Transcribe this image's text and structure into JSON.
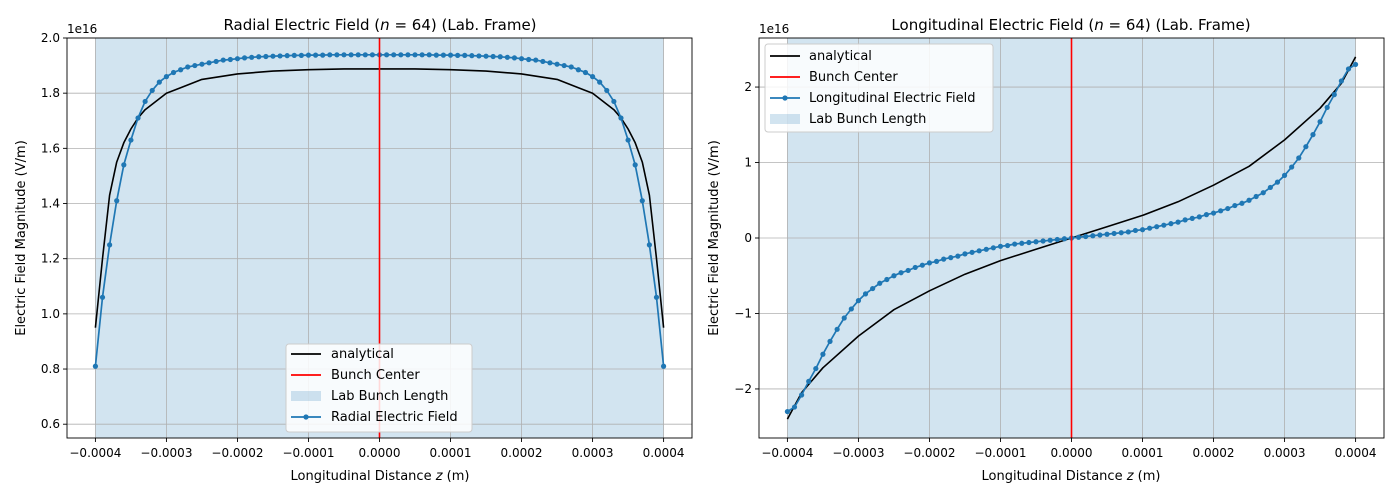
{
  "chart_data": [
    {
      "type": "line",
      "title": "Radial Electric Field (",
      "title_var": "n",
      "title_rest": " = 64) (Lab. Frame)",
      "xlabel": "Longitudinal Distance ",
      "xlabel_var": "z",
      "xlabel_unit": " (m)",
      "ylabel": "Electric Field Magnitude (V/m)",
      "offset_text": "1e16",
      "xlim": [
        -0.00044,
        0.00044
      ],
      "ylim": [
        0.55,
        2.0
      ],
      "xticks": [
        -0.0004,
        -0.0003,
        -0.0002,
        -0.0001,
        0.0,
        0.0001,
        0.0002,
        0.0003,
        0.0004
      ],
      "xtick_labels": [
        "−0.0004",
        "−0.0003",
        "−0.0002",
        "−0.0001",
        "0.0000",
        "0.0001",
        "0.0002",
        "0.0003",
        "0.0004"
      ],
      "yticks": [
        0.6,
        0.8,
        1.0,
        1.2,
        1.4,
        1.6,
        1.8,
        2.0
      ],
      "ytick_labels": [
        "0.6",
        "0.8",
        "1.0",
        "1.2",
        "1.4",
        "1.6",
        "1.8",
        "2.0"
      ],
      "grid": true,
      "bunch_span": [
        -0.0004,
        0.0004
      ],
      "bunch_center": 0.0,
      "legend_position": "lower-center",
      "legend": [
        "analytical",
        "Bunch Center",
        "Lab Bunch Length",
        "Radial Electric Field"
      ],
      "series": [
        {
          "name": "analytical",
          "x": [
            -0.0004,
            -0.00039,
            -0.00038,
            -0.00037,
            -0.00036,
            -0.00035,
            -0.00034,
            -0.00033,
            -0.00032,
            -0.00031,
            -0.0003,
            -0.00028,
            -0.00025,
            -0.0002,
            -0.00015,
            -0.0001,
            -5e-05,
            0.0,
            5e-05,
            0.0001,
            0.00015,
            0.0002,
            0.00025,
            0.00028,
            0.0003,
            0.00031,
            0.00032,
            0.00033,
            0.00034,
            0.00035,
            0.00036,
            0.00037,
            0.00038,
            0.00039,
            0.0004
          ],
          "values": [
            0.95,
            1.2,
            1.43,
            1.55,
            1.62,
            1.67,
            1.71,
            1.74,
            1.76,
            1.78,
            1.8,
            1.82,
            1.85,
            1.87,
            1.88,
            1.885,
            1.888,
            1.888,
            1.888,
            1.885,
            1.88,
            1.87,
            1.85,
            1.82,
            1.8,
            1.78,
            1.76,
            1.74,
            1.71,
            1.67,
            1.62,
            1.55,
            1.43,
            1.2,
            0.95
          ]
        },
        {
          "name": "Radial Electric Field",
          "x": [
            -0.0004,
            -0.00039,
            -0.00038,
            -0.00037,
            -0.00036,
            -0.00035,
            -0.00034,
            -0.00033,
            -0.00032,
            -0.00031,
            -0.0003,
            -0.00029,
            -0.00028,
            -0.00027,
            -0.00026,
            -0.00025,
            -0.00024,
            -0.00023,
            -0.00022,
            -0.00021,
            -0.0002,
            -0.00019,
            -0.00018,
            -0.00017,
            -0.00016,
            -0.00015,
            -0.00014,
            -0.00013,
            -0.00012,
            -0.00011,
            -0.0001,
            -9e-05,
            -8e-05,
            -7e-05,
            -6e-05,
            -5e-05,
            -4e-05,
            -3e-05,
            -2e-05,
            -1e-05,
            0.0,
            1e-05,
            2e-05,
            3e-05,
            4e-05,
            5e-05,
            6e-05,
            7e-05,
            8e-05,
            9e-05,
            0.0001,
            0.00011,
            0.00012,
            0.00013,
            0.00014,
            0.00015,
            0.00016,
            0.00017,
            0.00018,
            0.00019,
            0.0002,
            0.00021,
            0.00022,
            0.00023,
            0.00024,
            0.00025,
            0.00026,
            0.00027,
            0.00028,
            0.00029,
            0.0003,
            0.00031,
            0.00032,
            0.00033,
            0.00034,
            0.00035,
            0.00036,
            0.00037,
            0.00038,
            0.00039,
            0.0004
          ],
          "values": [
            0.81,
            1.06,
            1.25,
            1.41,
            1.54,
            1.63,
            1.71,
            1.77,
            1.81,
            1.84,
            1.86,
            1.875,
            1.885,
            1.895,
            1.9,
            1.905,
            1.91,
            1.915,
            1.92,
            1.922,
            1.925,
            1.928,
            1.93,
            1.932,
            1.933,
            1.934,
            1.935,
            1.936,
            1.937,
            1.937,
            1.938,
            1.938,
            1.938,
            1.939,
            1.939,
            1.939,
            1.939,
            1.939,
            1.939,
            1.939,
            1.939,
            1.939,
            1.939,
            1.939,
            1.939,
            1.939,
            1.939,
            1.939,
            1.938,
            1.938,
            1.938,
            1.937,
            1.937,
            1.936,
            1.935,
            1.934,
            1.933,
            1.932,
            1.93,
            1.928,
            1.925,
            1.922,
            1.92,
            1.915,
            1.91,
            1.905,
            1.9,
            1.895,
            1.885,
            1.875,
            1.86,
            1.84,
            1.81,
            1.77,
            1.71,
            1.63,
            1.54,
            1.41,
            1.25,
            1.06,
            0.81
          ]
        }
      ]
    },
    {
      "type": "line",
      "title": "Longitudinal Electric Field (",
      "title_var": "n",
      "title_rest": " = 64) (Lab. Frame)",
      "xlabel": "Longitudinal Distance ",
      "xlabel_var": "z",
      "xlabel_unit": " (m)",
      "ylabel": "Electric Field Magnitude (V/m)",
      "offset_text": "1e16",
      "xlim": [
        -0.00044,
        0.00044
      ],
      "ylim": [
        -2.65,
        2.65
      ],
      "xticks": [
        -0.0004,
        -0.0003,
        -0.0002,
        -0.0001,
        0.0,
        0.0001,
        0.0002,
        0.0003,
        0.0004
      ],
      "xtick_labels": [
        "−0.0004",
        "−0.0003",
        "−0.0002",
        "−0.0001",
        "0.0000",
        "0.0001",
        "0.0002",
        "0.0003",
        "0.0004"
      ],
      "yticks": [
        -2,
        -1,
        0,
        1,
        2
      ],
      "ytick_labels": [
        "−2",
        "−1",
        "0",
        "1",
        "2"
      ],
      "grid": true,
      "bunch_span": [
        -0.0004,
        0.0004
      ],
      "bunch_center": 0.0,
      "legend_position": "upper-left",
      "legend": [
        "analytical",
        "Bunch Center",
        "Longitudinal Electric Field",
        "Lab Bunch Length"
      ],
      "series": [
        {
          "name": "analytical",
          "x": [
            -0.0004,
            -0.00038,
            -0.00035,
            -0.0003,
            -0.00025,
            -0.0002,
            -0.00015,
            -0.0001,
            -5e-05,
            0.0,
            5e-05,
            0.0001,
            0.00015,
            0.0002,
            0.00025,
            0.0003,
            0.00035,
            0.00038,
            0.0004
          ],
          "values": [
            -2.4,
            -2.05,
            -1.72,
            -1.3,
            -0.95,
            -0.7,
            -0.48,
            -0.3,
            -0.15,
            0.0,
            0.15,
            0.3,
            0.48,
            0.7,
            0.95,
            1.3,
            1.72,
            2.05,
            2.4
          ]
        },
        {
          "name": "Longitudinal Electric Field",
          "x": [
            -0.0004,
            -0.00039,
            -0.00038,
            -0.00037,
            -0.00036,
            -0.00035,
            -0.00034,
            -0.00033,
            -0.00032,
            -0.00031,
            -0.0003,
            -0.00029,
            -0.00028,
            -0.00027,
            -0.00026,
            -0.00025,
            -0.00024,
            -0.00023,
            -0.00022,
            -0.00021,
            -0.0002,
            -0.00019,
            -0.00018,
            -0.00017,
            -0.00016,
            -0.00015,
            -0.00014,
            -0.00013,
            -0.00012,
            -0.00011,
            -0.0001,
            -9e-05,
            -8e-05,
            -7e-05,
            -6e-05,
            -5e-05,
            -4e-05,
            -3e-05,
            -2e-05,
            -1e-05,
            0.0,
            1e-05,
            2e-05,
            3e-05,
            4e-05,
            5e-05,
            6e-05,
            7e-05,
            8e-05,
            9e-05,
            0.0001,
            0.00011,
            0.00012,
            0.00013,
            0.00014,
            0.00015,
            0.00016,
            0.00017,
            0.00018,
            0.00019,
            0.0002,
            0.00021,
            0.00022,
            0.00023,
            0.00024,
            0.00025,
            0.00026,
            0.00027,
            0.00028,
            0.00029,
            0.0003,
            0.00031,
            0.00032,
            0.00033,
            0.00034,
            0.00035,
            0.00036,
            0.00037,
            0.00038,
            0.00039,
            0.0004
          ],
          "values": [
            -2.3,
            -2.24,
            -2.08,
            -1.9,
            -1.73,
            -1.54,
            -1.37,
            -1.21,
            -1.06,
            -0.94,
            -0.83,
            -0.74,
            -0.67,
            -0.6,
            -0.55,
            -0.5,
            -0.46,
            -0.43,
            -0.39,
            -0.36,
            -0.33,
            -0.31,
            -0.28,
            -0.26,
            -0.24,
            -0.21,
            -0.19,
            -0.17,
            -0.15,
            -0.13,
            -0.11,
            -0.1,
            -0.08,
            -0.07,
            -0.06,
            -0.05,
            -0.04,
            -0.03,
            -0.02,
            -0.01,
            0.0,
            0.01,
            0.02,
            0.03,
            0.04,
            0.05,
            0.06,
            0.07,
            0.08,
            0.1,
            0.11,
            0.13,
            0.15,
            0.17,
            0.19,
            0.21,
            0.24,
            0.26,
            0.28,
            0.31,
            0.33,
            0.36,
            0.39,
            0.43,
            0.46,
            0.5,
            0.55,
            0.6,
            0.67,
            0.74,
            0.83,
            0.94,
            1.06,
            1.21,
            1.37,
            1.54,
            1.73,
            1.9,
            2.08,
            2.24,
            2.3
          ]
        }
      ]
    }
  ],
  "colors": {
    "analytical": "#000000",
    "bunch_center": "#ff0000",
    "field": "#1f77b4",
    "bunch_fill": "#1f77b4",
    "grid": "#b0b0b0"
  }
}
